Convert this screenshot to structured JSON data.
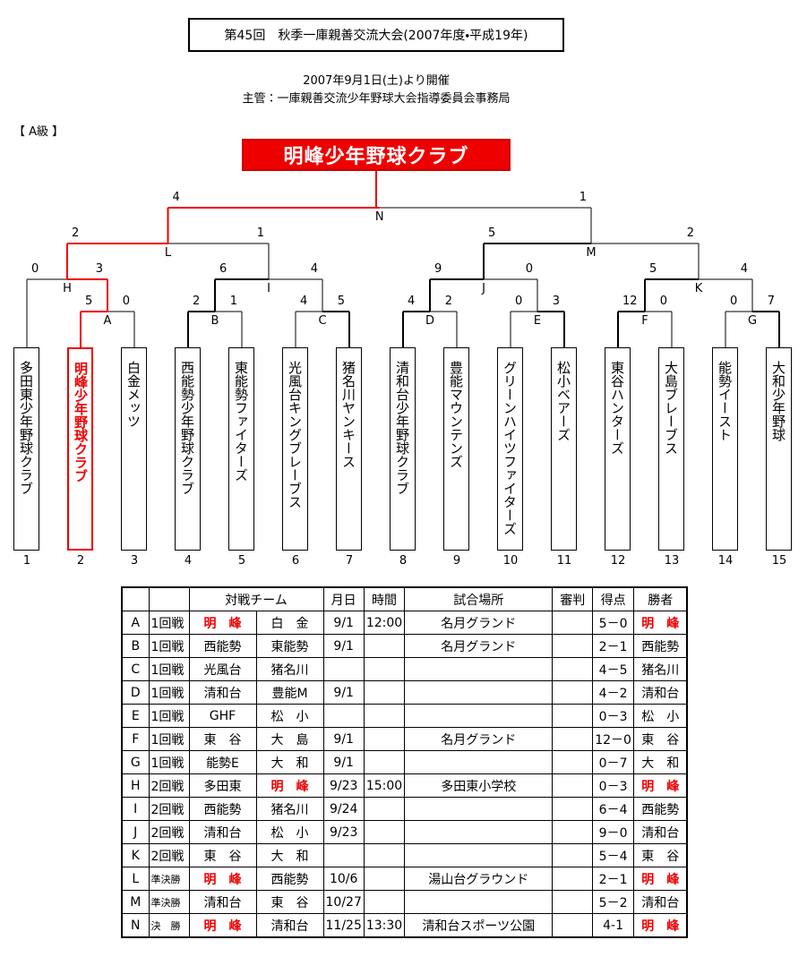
{
  "header": {
    "title": "第45回　秋季一庫親善交流大会(2007年度・平成19年)",
    "date": "2007年9月1日(土)より開催",
    "organizer": "主管：一庫親善交流少年野球大会指導委員会事務局"
  },
  "class_label": "【 A級 】",
  "champion": "明峰少年野球クラブ",
  "teams": [
    {
      "name": "多田東少年野球クラブ",
      "number": 1
    },
    {
      "name": "明峰少年野球クラブ",
      "number": 2
    },
    {
      "name": "白金メッツ",
      "number": 3
    },
    {
      "name": "西能勢少年野球クラブ",
      "number": 4
    },
    {
      "name": "東能勢ファイターズ",
      "number": 5
    },
    {
      "name": "光風台キングブレーブス",
      "number": 6
    },
    {
      "name": "猪名川ヤンキース",
      "number": 7
    },
    {
      "name": "清和台少年野球クラブ",
      "number": 8
    },
    {
      "name": "豊能マウンテンズ",
      "number": 9
    },
    {
      "name": "グリーンハイツファイターズ",
      "number": 10
    },
    {
      "name": "松小ベアーズ",
      "number": 11
    },
    {
      "name": "東谷ハンターズ",
      "number": 12
    },
    {
      "name": "大島ブレーブス",
      "number": 13
    },
    {
      "name": "能勢イースト",
      "number": 14
    },
    {
      "name": "大和少年野球",
      "number": 15
    }
  ],
  "table_headers": [
    "対戦チーム",
    "月日",
    "時間",
    "試合場所",
    "審判",
    "得点",
    "勝者"
  ],
  "matches": [
    {
      "id": "A",
      "scores": [
        5,
        0
      ],
      "round": "1回戦",
      "teams": [
        "明　峰",
        "白　金"
      ],
      "date": "9/1",
      "time": "12:00",
      "venue": "名月グランド",
      "result": "5－0",
      "winner": "明　峰"
    },
    {
      "id": "B",
      "scores": [
        2,
        1
      ],
      "round": "1回戦",
      "teams": [
        "西能勢",
        "東能勢"
      ],
      "date": "9/1",
      "venue": "名月グランド",
      "result": "2－1",
      "winner": "西能勢"
    },
    {
      "id": "C",
      "scores": [
        4,
        5
      ],
      "round": "1回戦",
      "teams": [
        "光風台",
        "猪名川"
      ],
      "result": "4－5",
      "winner": "猪名川"
    },
    {
      "id": "D",
      "scores": [
        4,
        2
      ],
      "round": "1回戦",
      "teams": [
        "清和台",
        "豊能M"
      ],
      "date": "9/1",
      "result": "4－2",
      "winner": "清和台"
    },
    {
      "id": "E",
      "scores": [
        0,
        3
      ],
      "round": "1回戦",
      "teams": [
        "GHF",
        "松　小"
      ],
      "result": "0－3",
      "winner": "松　小"
    },
    {
      "id": "F",
      "scores": [
        12,
        0
      ],
      "round": "1回戦",
      "teams": [
        "東　谷",
        "大　島"
      ],
      "date": "9/1",
      "venue": "名月グランド",
      "result": "12－0",
      "winner": "東　谷"
    },
    {
      "id": "G",
      "scores": [
        0,
        7
      ],
      "round": "1回戦",
      "teams": [
        "能勢E",
        "大　和"
      ],
      "date": "9/1",
      "result": "0－7",
      "winner": "大　和"
    },
    {
      "id": "H",
      "scores": [
        0,
        3
      ],
      "round": "2回戦",
      "teams": [
        "多田東",
        "明　峰"
      ],
      "date": "9/23",
      "time": "15:00",
      "venue": "多田東小学校",
      "result": "0－3",
      "winner": "明　峰"
    },
    {
      "id": "I",
      "scores": [
        6,
        4
      ],
      "round": "2回戦",
      "teams": [
        "西能勢",
        "猪名川"
      ],
      "date": "9/24",
      "result": "6－4",
      "winner": "西能勢"
    },
    {
      "id": "J",
      "scores": [
        9,
        0
      ],
      "round": "2回戦",
      "teams": [
        "清和台",
        "松　小"
      ],
      "date": "9/23",
      "result": "9－0",
      "winner": "清和台"
    },
    {
      "id": "K",
      "scores": [
        5,
        4
      ],
      "round": "2回戦",
      "teams": [
        "東　谷",
        "大　和"
      ],
      "result": "5－4",
      "winner": "東　谷"
    },
    {
      "id": "L",
      "scores": [
        2,
        1
      ],
      "round": "準決勝",
      "teams": [
        "明　峰",
        "西能勢"
      ],
      "date": "10/6",
      "venue": "湯山台グラウンド",
      "result": "2－1",
      "winner": "明　峰"
    },
    {
      "id": "M",
      "scores": [
        5,
        2
      ],
      "round": "準決勝",
      "teams": [
        "清和台",
        "東　谷"
      ],
      "date": "10/27",
      "result": "5－2",
      "winner": "清和台"
    },
    {
      "id": "N",
      "scores": [
        4,
        1
      ],
      "round": "決　勝",
      "teams": [
        "明　峰",
        "清和台"
      ],
      "date": "11/25",
      "time": "13:30",
      "venue": "清和台スポーツ公園",
      "result": "4-1",
      "winner": "明　峰"
    }
  ]
}
